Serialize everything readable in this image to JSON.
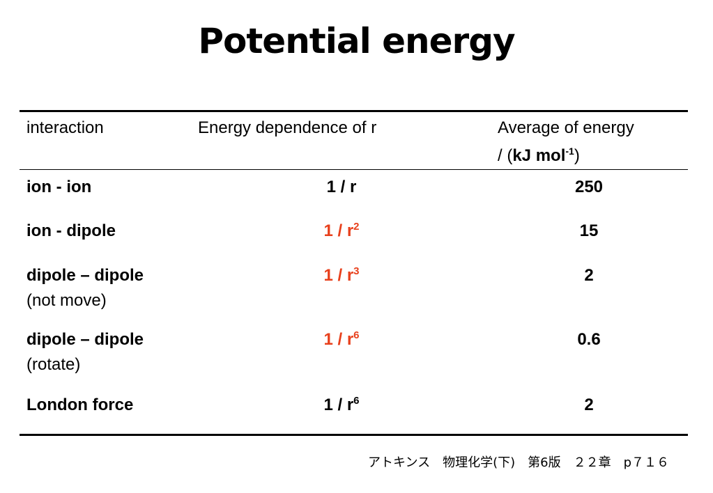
{
  "title": "Potential energy",
  "table": {
    "headers": {
      "interaction": "interaction",
      "dependence": "Energy dependence of r",
      "average_line1": "Average of energy",
      "average_line2_prefix": "/ (",
      "average_unit": "kJ mol",
      "average_exp": "-1",
      "average_line2_suffix": ")"
    },
    "rows": [
      {
        "name": "ion - ion",
        "sub": "",
        "dep_base": "1 / r",
        "dep_exp": "",
        "dep_highlight": false,
        "avg": "250"
      },
      {
        "name": "ion - dipole",
        "sub": "",
        "dep_base": "1 / r",
        "dep_exp": "2",
        "dep_highlight": true,
        "avg": "15"
      },
      {
        "name": "dipole – dipole",
        "sub": "(not move)",
        "dep_base": "1 / r",
        "dep_exp": "3",
        "dep_highlight": true,
        "avg": "2"
      },
      {
        "name": "dipole – dipole",
        "sub": "(rotate)",
        "dep_base": "1 / r",
        "dep_exp": "6",
        "dep_highlight": true,
        "avg": "0.6"
      },
      {
        "name": "London force",
        "sub": "",
        "dep_base": "1 / r",
        "dep_exp": "6",
        "dep_highlight": false,
        "avg": "2"
      }
    ]
  },
  "source": "アトキンス　物理化学(下)　第6版　２２章　p７１６",
  "colors": {
    "highlight": "#e8401c",
    "text": "#000000"
  }
}
